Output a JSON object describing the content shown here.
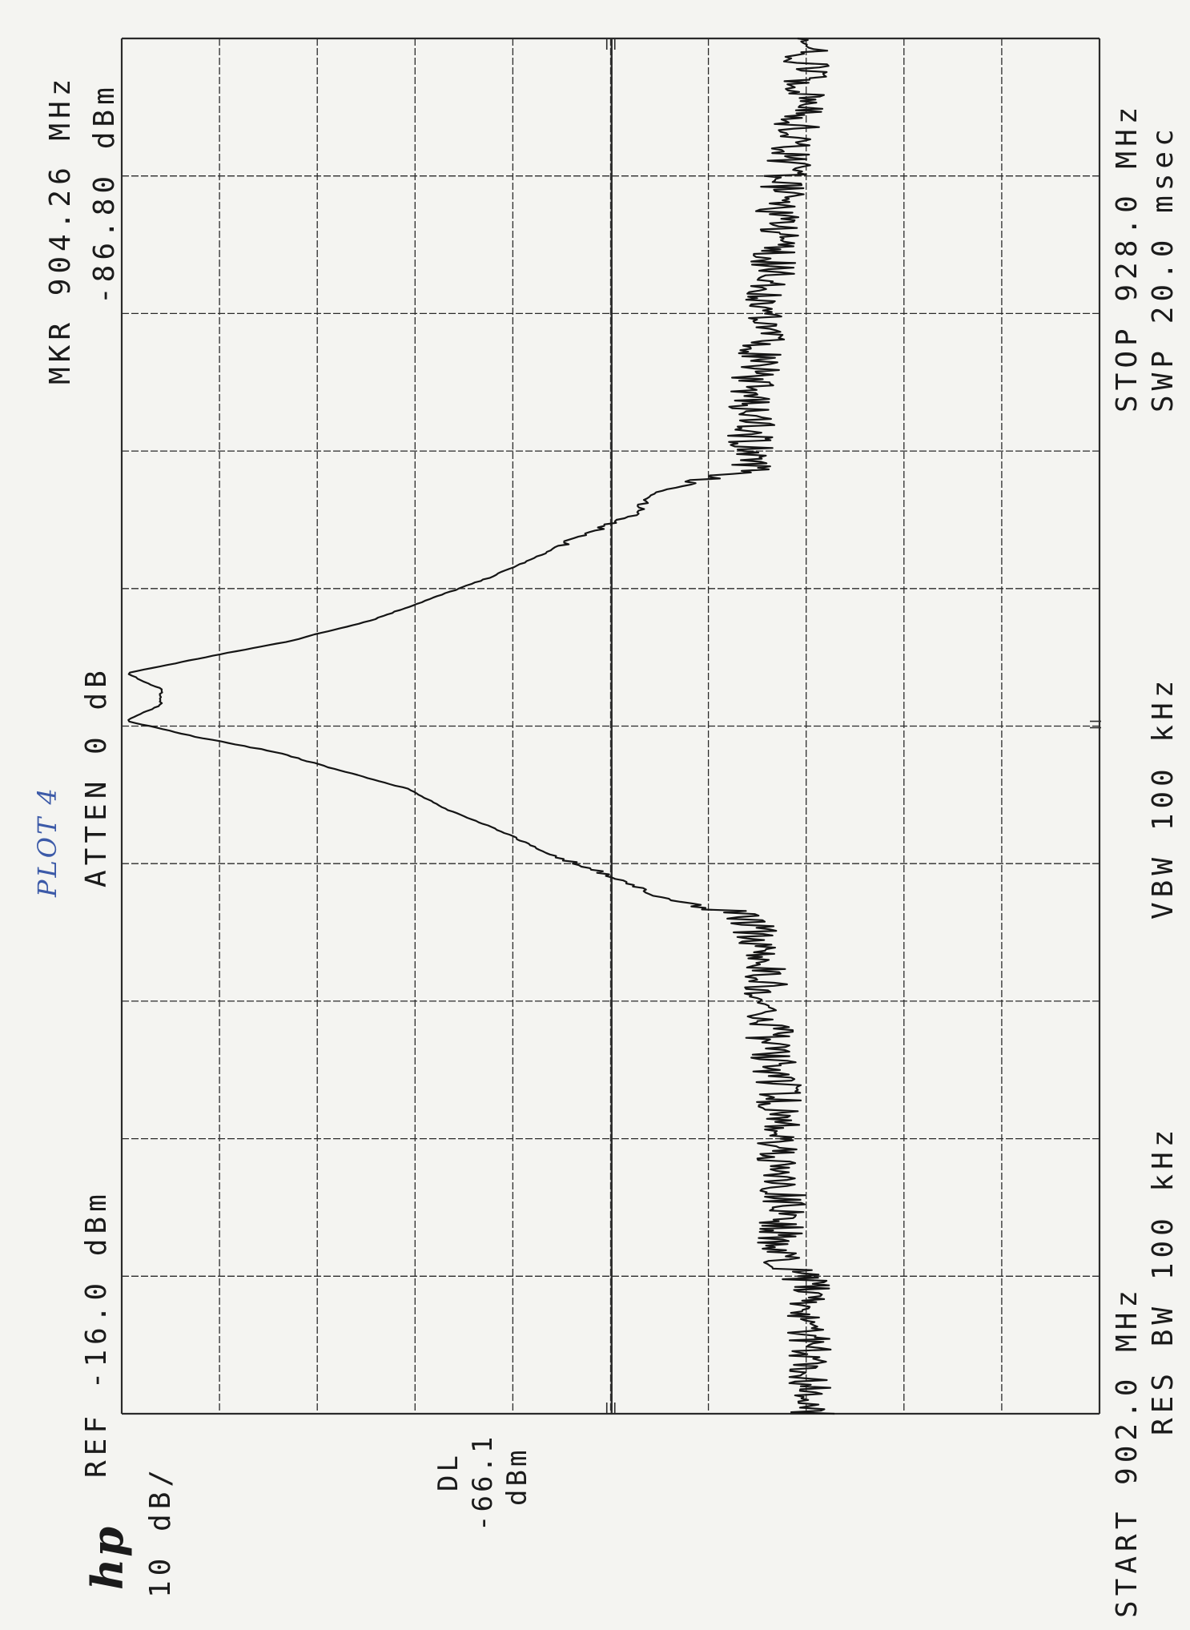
{
  "header": {
    "ref_level": "REF -16.0 dBm",
    "attenuation": "ATTEN 0 dB",
    "marker_freq": "MKR 904.26 MHz",
    "marker_level": "-86.80 dBm",
    "scale": "10 dB/",
    "display_line_label": "DL",
    "display_line_value": "-66.1",
    "display_line_unit": "dBm"
  },
  "footer": {
    "start": "START 902.0 MHz",
    "res_bw": "RES BW 100 kHz",
    "vbw": "VBW 100 kHz",
    "stop": "STOP 928.0 MHz",
    "sweep": "SWP 20.0 msec"
  },
  "logo_text": "hp",
  "handwritten_note": "PLOT 4",
  "colors": {
    "trace": "#151515",
    "grid": "#2a2a2a",
    "paper": "#f4f4f1",
    "note_ink": "#3c5aa8"
  },
  "chart_data": {
    "type": "line",
    "xlim": [
      902.0,
      928.0
    ],
    "ylim": [
      -116.0,
      -16.0
    ],
    "ref_level_dbm": -16.0,
    "db_per_div": 10,
    "display_line_dbm": -66.1,
    "marker": {
      "freq_mhz": 904.26,
      "level_dbm": -86.8
    },
    "grid": true,
    "series": [
      {
        "x": [
          902.0,
          902.6,
          903.2,
          903.8,
          904.26,
          904.6,
          905.0,
          905.6,
          906.2,
          906.8,
          907.4,
          908.0,
          908.6,
          909.0,
          909.4,
          909.8,
          910.2,
          910.6,
          911.0,
          911.4,
          911.8,
          912.2,
          912.6,
          913.0,
          913.4,
          913.8,
          914.2,
          914.5,
          914.8,
          915.1,
          915.4,
          915.7,
          916.0,
          916.3,
          916.6,
          917.0,
          917.4,
          917.8,
          918.2,
          918.6,
          919.0,
          919.4,
          919.8,
          920.4,
          921.0,
          921.6,
          922.2,
          922.8,
          923.4,
          924.0,
          924.6,
          925.2,
          925.8,
          926.4,
          927.0,
          927.6,
          928.0
        ],
        "y": [
          -86.5,
          -86.3,
          -86.4,
          -86.0,
          -86.8,
          -85.8,
          -82.5,
          -83.5,
          -83.7,
          -83.4,
          -83.0,
          -83.2,
          -82.9,
          -82.2,
          -82.3,
          -82.1,
          -82.0,
          -81.9,
          -80.8,
          -80.0,
          -70.5,
          -65.5,
          -59.5,
          -55.0,
          -49.5,
          -45.5,
          -37.5,
          -32.0,
          -23.5,
          -16.5,
          -20.0,
          -20.0,
          -16.5,
          -24.5,
          -33.0,
          -41.5,
          -47.5,
          -53.5,
          -58.5,
          -63.0,
          -68.5,
          -70.0,
          -80.0,
          -80.3,
          -80.5,
          -80.8,
          -81.2,
          -82.0,
          -82.3,
          -82.7,
          -83.0,
          -83.5,
          -84.5,
          -85.0,
          -85.6,
          -86.0,
          -86.2
        ]
      }
    ]
  }
}
